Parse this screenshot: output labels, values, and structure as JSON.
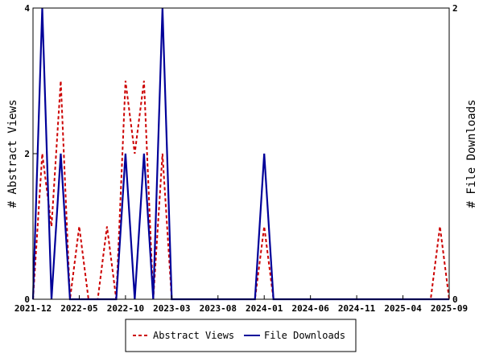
{
  "chart_data": {
    "type": "line",
    "title": "",
    "xlabel": "",
    "ylabel": "# Abstract Views",
    "y2label": "# File Downloads",
    "xlim": [
      0,
      45
    ],
    "ylim": [
      0,
      4
    ],
    "y2lim": [
      0,
      2
    ],
    "yticks": [
      0,
      2,
      4
    ],
    "y2ticks": [
      0,
      2
    ],
    "xticks": [
      {
        "x": 0,
        "label": "2021-12"
      },
      {
        "x": 5,
        "label": "2022-05"
      },
      {
        "x": 10,
        "label": "2022-10"
      },
      {
        "x": 15,
        "label": "2023-03"
      },
      {
        "x": 20,
        "label": "2023-08"
      },
      {
        "x": 25,
        "label": "2024-01"
      },
      {
        "x": 30,
        "label": "2024-06"
      },
      {
        "x": 35,
        "label": "2024-11"
      },
      {
        "x": 40,
        "label": "2025-04"
      },
      {
        "x": 45,
        "label": "2025-09"
      }
    ],
    "legend_position": "bottom-center",
    "grid": false,
    "series": [
      {
        "name": "Abstract Views",
        "axis": "left",
        "color": "#cc0000",
        "style": "dashed",
        "points": [
          [
            0,
            0
          ],
          [
            1,
            2
          ],
          [
            2,
            1
          ],
          [
            3,
            3
          ],
          [
            4,
            0
          ],
          [
            5,
            1
          ],
          [
            6,
            0
          ],
          [
            7,
            0
          ],
          [
            8,
            1
          ],
          [
            9,
            0
          ],
          [
            10,
            3
          ],
          [
            11,
            2
          ],
          [
            12,
            3
          ],
          [
            13,
            0
          ],
          [
            14,
            2
          ],
          [
            15,
            0
          ],
          [
            16,
            0
          ],
          [
            17,
            0
          ],
          [
            18,
            0
          ],
          [
            19,
            0
          ],
          [
            20,
            0
          ],
          [
            21,
            0
          ],
          [
            22,
            0
          ],
          [
            23,
            0
          ],
          [
            24,
            0
          ],
          [
            25,
            1
          ],
          [
            26,
            0
          ],
          [
            27,
            0
          ],
          [
            28,
            0
          ],
          [
            29,
            0
          ],
          [
            30,
            0
          ],
          [
            31,
            0
          ],
          [
            32,
            0
          ],
          [
            33,
            0
          ],
          [
            34,
            0
          ],
          [
            35,
            0
          ],
          [
            36,
            0
          ],
          [
            37,
            0
          ],
          [
            38,
            0
          ],
          [
            39,
            0
          ],
          [
            40,
            0
          ],
          [
            41,
            0
          ],
          [
            42,
            0
          ],
          [
            43,
            0
          ],
          [
            44,
            1
          ],
          [
            45,
            0
          ]
        ]
      },
      {
        "name": "File Downloads",
        "axis": "right",
        "color": "#000099",
        "style": "solid",
        "points": [
          [
            0,
            0
          ],
          [
            1,
            2
          ],
          [
            2,
            0
          ],
          [
            3,
            1
          ],
          [
            4,
            0
          ],
          [
            5,
            0
          ],
          [
            6,
            0
          ],
          [
            7,
            0
          ],
          [
            8,
            0
          ],
          [
            9,
            0
          ],
          [
            10,
            1
          ],
          [
            11,
            0
          ],
          [
            12,
            1
          ],
          [
            13,
            0
          ],
          [
            14,
            2
          ],
          [
            15,
            0
          ],
          [
            16,
            0
          ],
          [
            17,
            0
          ],
          [
            18,
            0
          ],
          [
            19,
            0
          ],
          [
            20,
            0
          ],
          [
            21,
            0
          ],
          [
            22,
            0
          ],
          [
            23,
            0
          ],
          [
            24,
            0
          ],
          [
            25,
            1
          ],
          [
            26,
            0
          ],
          [
            27,
            0
          ],
          [
            28,
            0
          ],
          [
            29,
            0
          ],
          [
            30,
            0
          ],
          [
            31,
            0
          ],
          [
            32,
            0
          ],
          [
            33,
            0
          ],
          [
            34,
            0
          ],
          [
            35,
            0
          ],
          [
            36,
            0
          ],
          [
            37,
            0
          ],
          [
            38,
            0
          ],
          [
            39,
            0
          ],
          [
            40,
            0
          ],
          [
            41,
            0
          ],
          [
            42,
            0
          ],
          [
            43,
            0
          ],
          [
            44,
            0
          ],
          [
            45,
            0
          ]
        ]
      }
    ]
  }
}
